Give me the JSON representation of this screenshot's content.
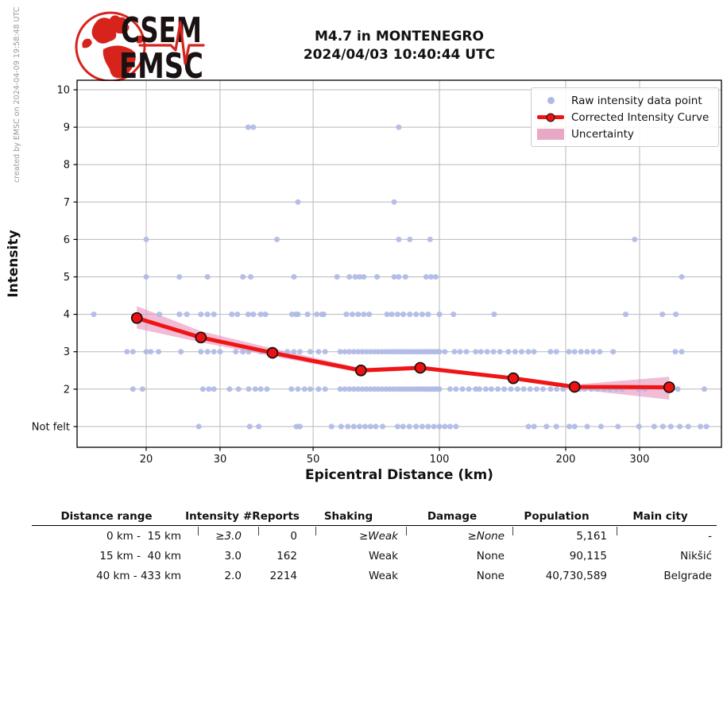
{
  "meta": {
    "created_by": "created by EMSC on 2024-04-09 19:58:48 UTC"
  },
  "logo": {
    "top": "CSEM",
    "bottom": "EMSC"
  },
  "title": {
    "line1": "M4.7 in MONTENEGRO",
    "line2": "2024/04/03 10:40:44 UTC"
  },
  "chart_data": {
    "type": "scatter",
    "title": "M4.7 in MONTENEGRO 2024/04/03 10:40:44 UTC",
    "xlabel": "Epicentral Distance (km)",
    "ylabel": "Intensity",
    "x_scale": "log",
    "xlim": [
      13.7,
      470
    ],
    "ylim": [
      0.45,
      10.25
    ],
    "grid": true,
    "legend_position": "upper right",
    "x_ticks": [
      20,
      30,
      50,
      100,
      200,
      300
    ],
    "y_tick_values": [
      10,
      9,
      8,
      7,
      6,
      5,
      4,
      3,
      2,
      1
    ],
    "y_tick_labels": [
      "10",
      "9",
      "8",
      "7",
      "6",
      "5",
      "4",
      "3",
      "2",
      "Not felt"
    ],
    "legend": [
      "Raw intensity data point",
      "Corrected Intensity Curve",
      "Uncertainty"
    ],
    "colors": {
      "raw": "#aeb9e6",
      "curve": "#f01515",
      "marker": "#ee1111",
      "band": "#e791ba",
      "grid": "#b8b8b8"
    },
    "raw_points": [
      {
        "intensity": 9,
        "distances": [
          35,
          36,
          80
        ]
      },
      {
        "intensity": 7,
        "distances": [
          46,
          78
        ]
      },
      {
        "intensity": 6,
        "distances": [
          20,
          41,
          80,
          85,
          95,
          292
        ]
      },
      {
        "intensity": 5,
        "distances": [
          20,
          24,
          28,
          34,
          35.5,
          45,
          57,
          61,
          63,
          64.5,
          66,
          71,
          78,
          80,
          83,
          93,
          95.5,
          98,
          378
        ]
      },
      {
        "intensity": 4,
        "distances": [
          15,
          21.5,
          24,
          25,
          27,
          28,
          29,
          32,
          33,
          35,
          36,
          37.5,
          38.5,
          44.5,
          45.5,
          46,
          48.5,
          51,
          52.5,
          53,
          60,
          62,
          64,
          66,
          68,
          75,
          77,
          79.5,
          82,
          85,
          88,
          91,
          94,
          100,
          108,
          135,
          278,
          340,
          366
        ]
      },
      {
        "intensity": 3,
        "distances": [
          18,
          18.6,
          20,
          20.5,
          21.4,
          24.2,
          27,
          28,
          29,
          30,
          32.7,
          34,
          35.1,
          37.5,
          43.4,
          45,
          46.5,
          49.2,
          51.5,
          53.4,
          58,
          59.5,
          61,
          62.5,
          64,
          65.5,
          67,
          68.5,
          70,
          71.5,
          73,
          74.5,
          76,
          77.5,
          79,
          80.5,
          82,
          83.5,
          85,
          86.5,
          88,
          89.5,
          91,
          92.5,
          94,
          95.5,
          97,
          98.5,
          100,
          103,
          108.6,
          112,
          116,
          122,
          125.6,
          130,
          134.6,
          139.4,
          146,
          151.5,
          157,
          163,
          168,
          184,
          190,
          203.6,
          210,
          217.5,
          225,
          232.7,
          241,
          259.5,
          365,
          378
        ]
      },
      {
        "intensity": 2,
        "distances": [
          18.6,
          19.6,
          27.3,
          28.2,
          29,
          31.6,
          33.2,
          35.1,
          36.4,
          37.5,
          38.8,
          44.4,
          46,
          47.7,
          49.2,
          51.5,
          53.4,
          58,
          59.5,
          61,
          62.5,
          64,
          65.5,
          67,
          68.5,
          70,
          71.5,
          73,
          74.5,
          76,
          77.5,
          79,
          80.5,
          82,
          83.5,
          85,
          86.5,
          88,
          89.5,
          91,
          92.5,
          94,
          95.5,
          97,
          98.5,
          100,
          106,
          109.5,
          113.5,
          117.5,
          122,
          124.6,
          129,
          133,
          137.8,
          142.7,
          148,
          153.5,
          158.8,
          164.5,
          170.5,
          176.6,
          184,
          190.3,
          197,
          208.5,
          215.8,
          221.8,
          230,
          238,
          246.5,
          255.3,
          264.3,
          272.6,
          298.7,
          309,
          370,
          428
        ]
      },
      {
        "intensity": 1,
        "distances": [
          26.7,
          35.3,
          37.1,
          45.6,
          46.5,
          55.3,
          58.3,
          60.5,
          62.5,
          64.5,
          66.5,
          68.5,
          70.5,
          73.2,
          79.5,
          81.9,
          84.8,
          88,
          91,
          94,
          97,
          100,
          103,
          106,
          109.5,
          163,
          168,
          180,
          190,
          204,
          210,
          225,
          242.8,
          266.5,
          299,
          325,
          341,
          356,
          374,
          392,
          419,
          433
        ]
      }
    ],
    "corrected_curve": [
      [
        19,
        3.9
      ],
      [
        27,
        3.38
      ],
      [
        40,
        2.97
      ],
      [
        65,
        2.5
      ],
      [
        90,
        2.57
      ],
      [
        150,
        2.29
      ],
      [
        210,
        2.06
      ],
      [
        353,
        2.05
      ]
    ],
    "uncertainty_band": {
      "x": [
        19,
        27,
        40,
        65,
        90,
        150,
        210,
        353
      ],
      "upper": [
        4.22,
        3.55,
        3.09,
        2.56,
        2.63,
        2.34,
        2.12,
        2.33
      ],
      "lower": [
        3.62,
        3.25,
        2.88,
        2.44,
        2.51,
        2.24,
        2.0,
        1.72
      ]
    }
  },
  "table": {
    "headers": [
      "Distance range",
      "Intensity",
      "#Reports",
      "Shaking",
      "Damage",
      "Population",
      "Main city"
    ],
    "rows": [
      [
        "0 km -  15 km",
        "≥3.0",
        "0",
        "≥Weak",
        "≥None",
        "5,161",
        "-"
      ],
      [
        "15 km -  40 km",
        "3.0",
        "162",
        "Weak",
        "None",
        "90,115",
        "Nikšić"
      ],
      [
        "40 km - 433 km",
        "2.0",
        "2214",
        "Weak",
        "None",
        "40,730,589",
        "Belgrade"
      ]
    ]
  }
}
